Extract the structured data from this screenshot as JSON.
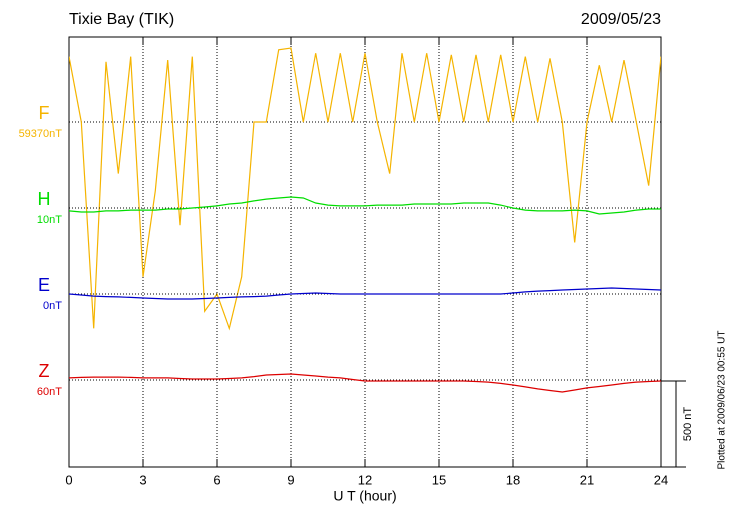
{
  "chart_data": {
    "type": "line",
    "title": "Tixie Bay (TIK)",
    "date": "2009/05/23",
    "xlabel": "U T (hour)",
    "note": "Plotted at 2009/06/23 00:55 UT",
    "scale": {
      "value": 500,
      "label": "500 nT"
    },
    "xlim": [
      0,
      24
    ],
    "xticks": [
      0,
      3,
      6,
      9,
      12,
      15,
      18,
      21,
      24
    ],
    "grid": true,
    "x": [
      0,
      0.5,
      1,
      1.5,
      2,
      2.5,
      3,
      3.5,
      4,
      4.5,
      5,
      5.5,
      6,
      6.5,
      7,
      7.5,
      8,
      8.5,
      9,
      9.5,
      10,
      10.5,
      11,
      11.5,
      12,
      12.5,
      13,
      13.5,
      14,
      14.5,
      15,
      15.5,
      16,
      16.5,
      17,
      17.5,
      18,
      18.5,
      19,
      19.5,
      20,
      20.5,
      21,
      21.5,
      22,
      22.5,
      23,
      23.5,
      24
    ],
    "series": [
      {
        "name": "F",
        "color": "#f5b400",
        "base": {
          "value": 59370,
          "label": "59370nT"
        },
        "values": [
          59750,
          59370,
          58170,
          59720,
          59070,
          59750,
          58470,
          58970,
          59730,
          58770,
          59750,
          58270,
          58370,
          58170,
          58470,
          59370,
          59370,
          59790,
          59800,
          59370,
          59770,
          59370,
          59770,
          59370,
          59770,
          59370,
          59070,
          59770,
          59370,
          59770,
          59370,
          59760,
          59370,
          59760,
          59370,
          59760,
          59370,
          59750,
          59370,
          59740,
          59370,
          58670,
          59370,
          59700,
          59370,
          59730,
          59370,
          59000,
          59750
        ]
      },
      {
        "name": "H",
        "color": "#00dd00",
        "base": {
          "value": 10,
          "label": "10nT"
        },
        "values": [
          -7,
          -13,
          -13,
          -7,
          -7,
          -2,
          -2,
          -2,
          4,
          4,
          10,
          16,
          22,
          33,
          39,
          51,
          62,
          68,
          74,
          68,
          39,
          27,
          22,
          22,
          22,
          27,
          27,
          27,
          33,
          33,
          33,
          33,
          39,
          39,
          39,
          27,
          10,
          -2,
          -7,
          -7,
          -7,
          -2,
          -7,
          -25,
          -19,
          -13,
          -2,
          4,
          4
        ]
      },
      {
        "name": "E",
        "color": "#0000cc",
        "base": {
          "value": 0,
          "label": "0nT"
        },
        "values": [
          0,
          -6,
          -12,
          -15,
          -17,
          -20,
          -23,
          -26,
          -29,
          -29,
          -29,
          -26,
          -23,
          -20,
          -17,
          -15,
          -12,
          -6,
          0,
          3,
          6,
          3,
          0,
          0,
          0,
          0,
          0,
          0,
          0,
          0,
          0,
          0,
          0,
          0,
          0,
          0,
          6,
          12,
          17,
          20,
          23,
          26,
          29,
          32,
          35,
          32,
          29,
          26,
          23
        ]
      },
      {
        "name": "Z",
        "color": "#dd0000",
        "base": {
          "value": 60,
          "label": "60nT"
        },
        "values": [
          72,
          75,
          77,
          77,
          77,
          75,
          72,
          72,
          72,
          69,
          66,
          66,
          66,
          69,
          72,
          80,
          89,
          92,
          95,
          89,
          83,
          77,
          72,
          63,
          54,
          54,
          54,
          54,
          54,
          54,
          54,
          54,
          54,
          51,
          48,
          40,
          31,
          20,
          8,
          -1,
          -10,
          2,
          14,
          22,
          31,
          40,
          48,
          51,
          54
        ]
      }
    ]
  }
}
